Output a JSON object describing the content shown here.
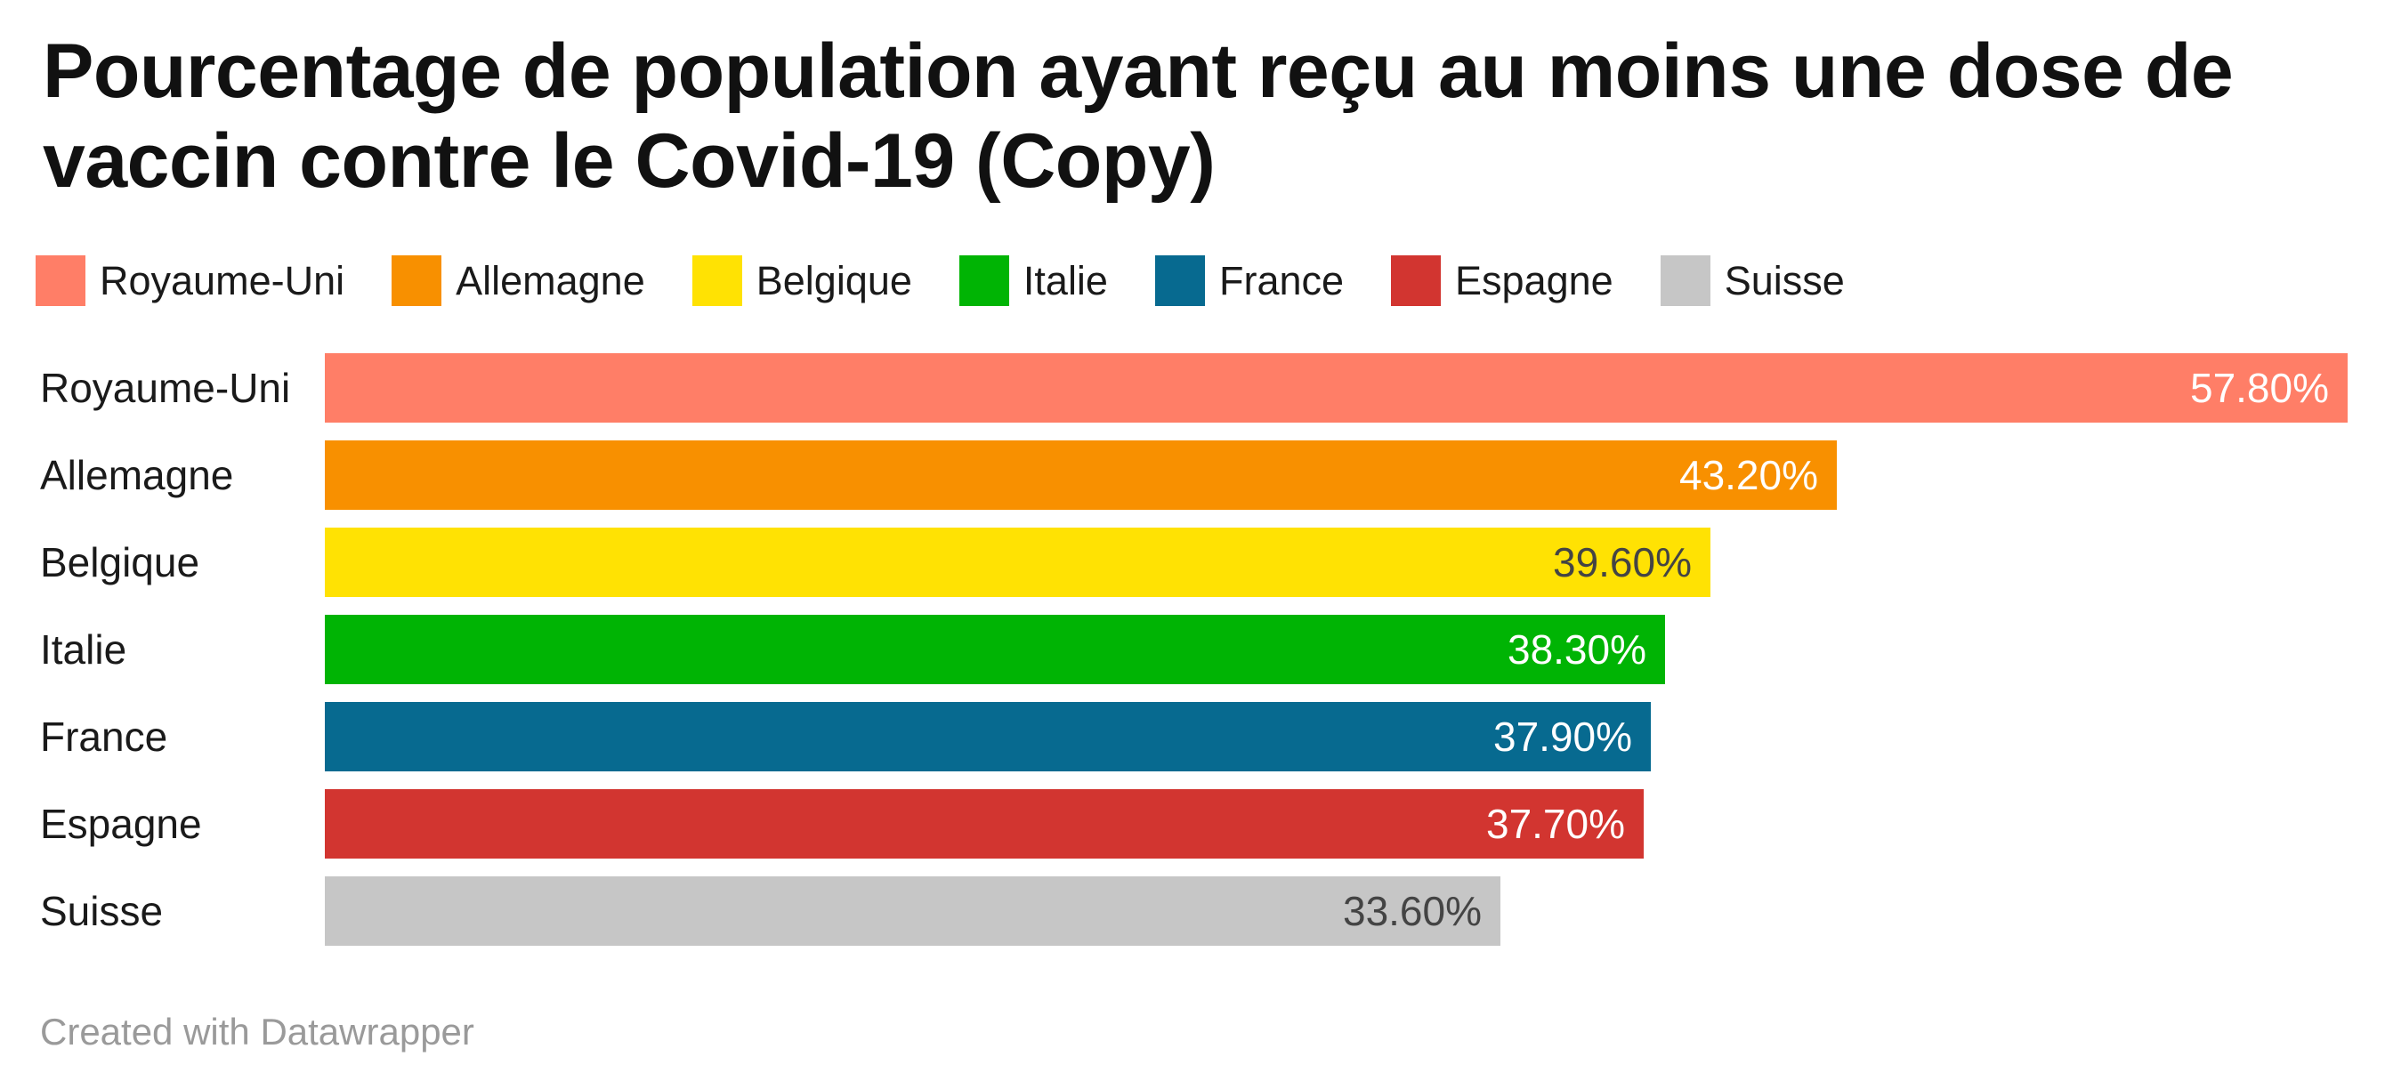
{
  "title": {
    "line1": "Pourcentage de population ayant reçu au moins une dose de",
    "line2": "vaccin contre le Covid-19 (Copy)"
  },
  "legend": {
    "items": [
      {
        "label": "Royaume-Uni",
        "color": "#FF7E67"
      },
      {
        "label": "Allemagne",
        "color": "#F89000"
      },
      {
        "label": "Belgique",
        "color": "#FFE203"
      },
      {
        "label": "Italie",
        "color": "#00B404"
      },
      {
        "label": "France",
        "color": "#076A90"
      },
      {
        "label": "Espagne",
        "color": "#D23530"
      },
      {
        "label": "Suisse",
        "color": "#C6C6C6"
      }
    ]
  },
  "chart_data": {
    "type": "bar",
    "orientation": "horizontal",
    "title": "Pourcentage de population ayant reçu au moins une dose de vaccin contre le Covid-19 (Copy)",
    "categories": [
      "Royaume-Uni",
      "Allemagne",
      "Belgique",
      "Italie",
      "France",
      "Espagne",
      "Suisse"
    ],
    "values": [
      57.8,
      43.2,
      39.6,
      38.3,
      37.9,
      37.7,
      33.6
    ],
    "value_labels": [
      "57.80%",
      "43.20%",
      "39.60%",
      "38.30%",
      "37.90%",
      "37.70%",
      "33.60%"
    ],
    "bar_colors": [
      "#FF7E67",
      "#F89000",
      "#FFE203",
      "#00B404",
      "#076A90",
      "#D23530",
      "#C6C6C6"
    ],
    "value_label_colors": [
      "#ffffff",
      "#ffffff",
      "#444444",
      "#ffffff",
      "#ffffff",
      "#ffffff",
      "#444444"
    ],
    "xlim": [
      0,
      60
    ],
    "grid": false,
    "legend_position": "top",
    "value_label_position": "inside-end"
  },
  "footer": {
    "credit": "Created with Datawrapper"
  }
}
